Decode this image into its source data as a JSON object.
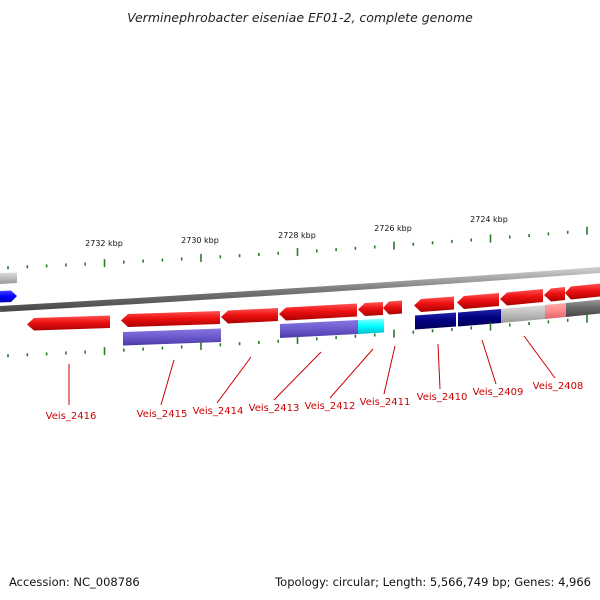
{
  "title": "Verminephrobacter eiseniae EF01-2, complete genome",
  "footer": {
    "accession": "Accession: NC_008786",
    "summary": "Topology: circular; Length: 5,566,749 bp; Genes: 4,966"
  },
  "scale_labels": [
    "2732 kbp",
    "2730 kbp",
    "2728 kbp",
    "2726 kbp",
    "2724 kbp"
  ],
  "gene_labels": [
    "Veis_2416",
    "Veis_2415",
    "Veis_2414",
    "Veis_2413",
    "Veis_2412",
    "Veis_2411",
    "Veis_2410",
    "Veis_2409",
    "Veis_2408"
  ],
  "colors": {
    "gene_red": "#ee1111",
    "gene_red_light": "#ff8888",
    "slate_blue": "#6a5acd",
    "navy": "#000080",
    "cyan": "#00ffff",
    "blue": "#0000ff",
    "grey": "#bbbbbb",
    "dark_grey": "#666666",
    "tick_green": "#2a7a2a",
    "label_red": "#cc0000"
  }
}
